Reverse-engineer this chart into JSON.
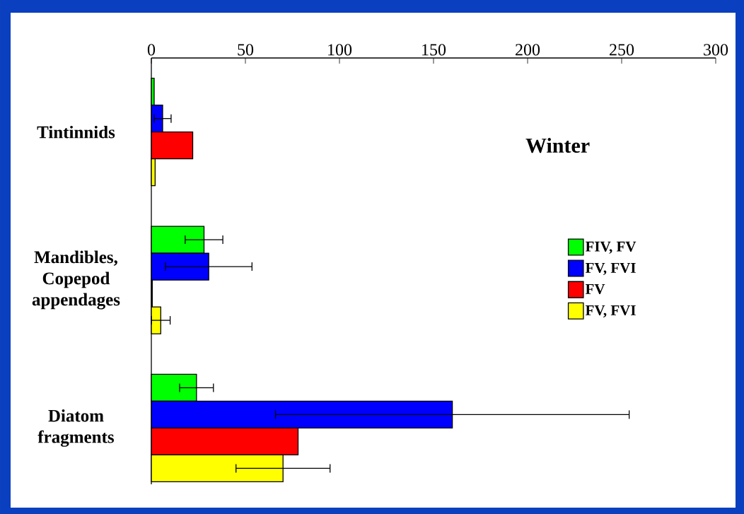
{
  "chart_data": {
    "type": "bar",
    "orientation": "horizontal",
    "title": "Winter",
    "categories": [
      "Tintinnids",
      "Mandibles, Copepod appendages",
      "Diatom fragments"
    ],
    "series": [
      {
        "name": "FIV, FV",
        "color": "#00ff00",
        "values": [
          1.5,
          28,
          24
        ],
        "errors": [
          null,
          10,
          9
        ]
      },
      {
        "name": "FV, FVI",
        "color": "#0000ff",
        "values": [
          6,
          30.5,
          160
        ],
        "errors": [
          4.5,
          23,
          94
        ]
      },
      {
        "name": "FV",
        "color": "#ff0000",
        "values": [
          22,
          0.5,
          78
        ]
      },
      {
        "name": "FV, FVI",
        "color": "#ffff00",
        "values": [
          2,
          5,
          70
        ],
        "errors": [
          null,
          5,
          25
        ]
      }
    ],
    "xlim": [
      0,
      300
    ],
    "xticks": [
      0,
      50,
      100,
      150,
      200,
      250,
      300
    ],
    "grid": false,
    "legend": "right"
  }
}
